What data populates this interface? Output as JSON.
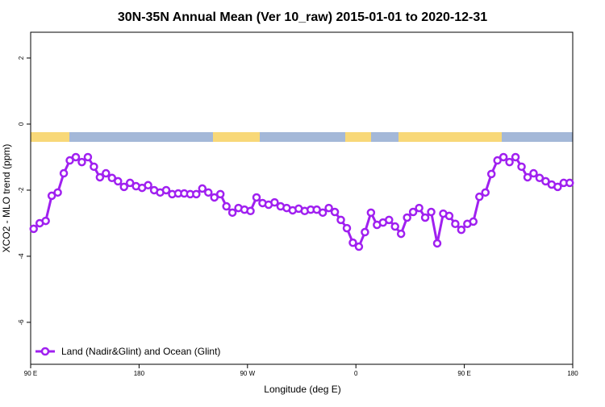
{
  "chart_data": {
    "type": "line",
    "title": "30N-35N Annual Mean (Ver 10_raw)   2015-01-01 to 2020-12-31",
    "x_label": "Longitude (deg E)",
    "y_label": "XCO2 - MLO trend (ppm)",
    "xlim": [
      90,
      540
    ],
    "xticks": [
      {
        "value": 90,
        "label": "90 E"
      },
      180,
      {
        "value": 270,
        "label": "90 W"
      },
      {
        "value": 360,
        "label": "0"
      },
      {
        "value": 450,
        "label": "90 E"
      },
      {
        "value": 540,
        "label": "180"
      }
    ],
    "ylim": [
      -7.27,
      2.78
    ],
    "yticks": [
      2,
      0,
      -2,
      -4,
      -6
    ],
    "legend": "bottom-left",
    "x": [
      92.5,
      97.5,
      102.5,
      107.5,
      112.5,
      117.5,
      122.5,
      127.5,
      132.5,
      137.5,
      142.5,
      147.5,
      152.5,
      157.5,
      162.5,
      167.5,
      172.5,
      177.5,
      182.5,
      187.5,
      192.5,
      197.5,
      202.5,
      207.5,
      212.5,
      217.5,
      222.5,
      227.5,
      232.5,
      237.5,
      242.5,
      247.5,
      252.5,
      257.5,
      262.5,
      267.5,
      272.5,
      277.5,
      282.5,
      287.5,
      292.5,
      297.5,
      302.5,
      307.5,
      312.5,
      317.5,
      322.5,
      327.5,
      332.5,
      337.5,
      342.5,
      347.5,
      352.5,
      357.5,
      362.5,
      367.5,
      372.5,
      377.5,
      382.5,
      387.5,
      392.5,
      397.5,
      402.5,
      407.5,
      412.5,
      417.5,
      422.5,
      427.5,
      432.5,
      437.5,
      442.5,
      447.5,
      452.5,
      457.5,
      462.5,
      467.5,
      472.5,
      477.5,
      482.5,
      487.5,
      492.5,
      497.5,
      502.5,
      507.5,
      512.5,
      517.5,
      522.5,
      527.5,
      532.5,
      537.5
    ],
    "series": [
      {
        "name": "Land (Nadir&Glint) and Ocean (Glint)",
        "color": "#a020f0",
        "values": [
          -3.17,
          -3.0,
          -2.93,
          -2.17,
          -2.07,
          -1.49,
          -1.1,
          -1.0,
          -1.15,
          -1.0,
          -1.29,
          -1.61,
          -1.49,
          -1.63,
          -1.73,
          -1.9,
          -1.78,
          -1.88,
          -1.93,
          -1.85,
          -2.0,
          -2.07,
          -2.0,
          -2.12,
          -2.1,
          -2.1,
          -2.12,
          -2.12,
          -1.95,
          -2.07,
          -2.22,
          -2.12,
          -2.49,
          -2.68,
          -2.54,
          -2.59,
          -2.63,
          -2.22,
          -2.39,
          -2.44,
          -2.37,
          -2.49,
          -2.54,
          -2.61,
          -2.56,
          -2.63,
          -2.59,
          -2.59,
          -2.68,
          -2.54,
          -2.66,
          -2.9,
          -3.15,
          -3.59,
          -3.71,
          -3.27,
          -2.68,
          -3.05,
          -2.98,
          -2.9,
          -3.1,
          -3.32,
          -2.83,
          -2.66,
          -2.54,
          -2.83,
          -2.66,
          -3.61,
          -2.71,
          -2.78,
          -3.02,
          -3.2,
          -3.02,
          -2.95,
          -2.2,
          -2.07,
          -1.51,
          -1.1,
          -1.0,
          -1.15,
          -1.0,
          -1.29,
          -1.61,
          -1.49,
          -1.63,
          -1.73,
          -1.83,
          -1.9,
          -1.78,
          -1.78
        ]
      }
    ]
  }
}
